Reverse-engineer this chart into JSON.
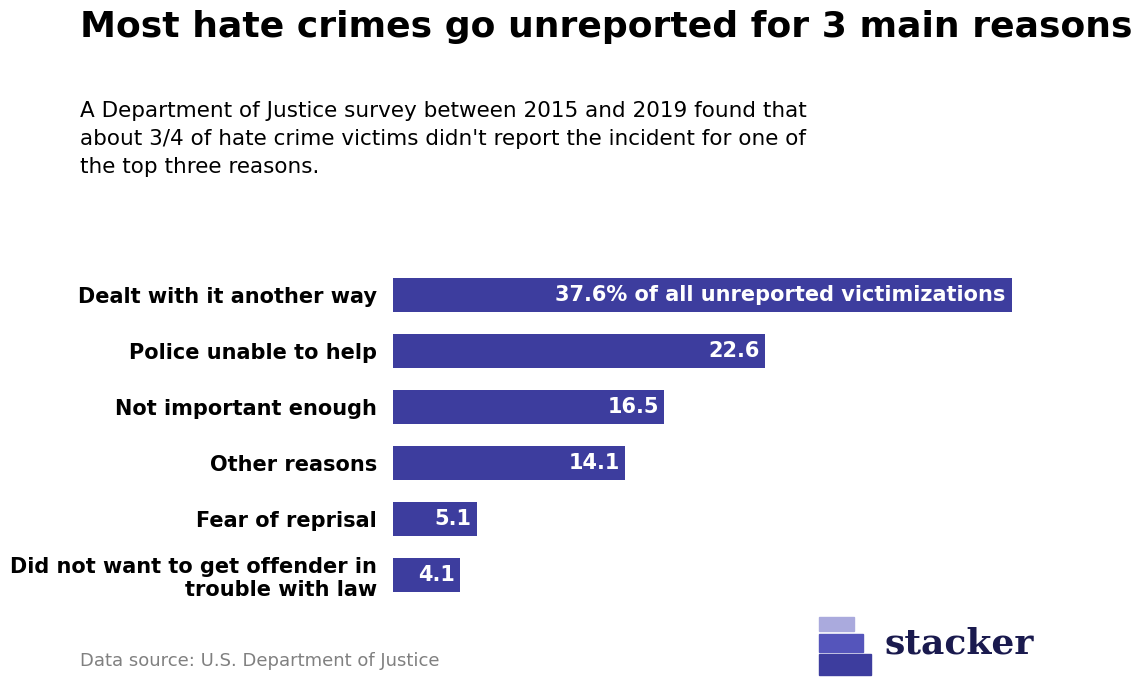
{
  "title": "Most hate crimes go unreported for 3 main reasons",
  "subtitle": "A Department of Justice survey between 2015 and 2019 found that\nabout 3/4 of hate crime victims didn't report the incident for one of\nthe top three reasons.",
  "categories": [
    "Dealt with it another way",
    "Police unable to help",
    "Not important enough",
    "Other reasons",
    "Fear of reprisal",
    "Did not want to get offender in\ntrouble with law"
  ],
  "values": [
    37.6,
    22.6,
    16.5,
    14.1,
    5.1,
    4.1
  ],
  "bar_labels": [
    "37.6% of all unreported victimizations",
    "22.6",
    "16.5",
    "14.1",
    "5.1",
    "4.1"
  ],
  "bar_color": "#3d3d9e",
  "text_color_inside": "#ffffff",
  "background_color": "#ffffff",
  "data_source": "Data source: U.S. Department of Justice",
  "xlim": [
    0,
    42
  ],
  "bar_height": 0.62,
  "title_fontsize": 26,
  "subtitle_fontsize": 15.5,
  "label_fontsize": 15,
  "value_fontsize": 15,
  "source_fontsize": 13,
  "stacker_text_color": "#1a1a4e",
  "stacker_bar_colors": [
    "#3d3d9e",
    "#5050c0",
    "#9090d8"
  ],
  "stacker_fontsize": 26
}
